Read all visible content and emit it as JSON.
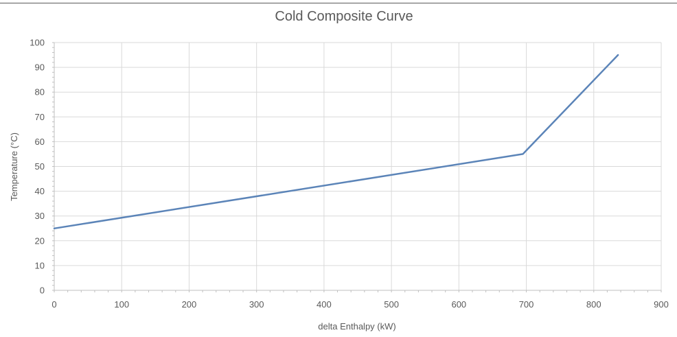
{
  "chart_data": {
    "type": "line",
    "title": "Cold Composite Curve",
    "xlabel": "delta Enthalpy  (kW)",
    "ylabel": "Temperature  (°C)",
    "xlim": [
      0,
      900
    ],
    "ylim": [
      0,
      100
    ],
    "x_ticks": [
      0,
      100,
      200,
      300,
      400,
      500,
      600,
      700,
      800,
      900
    ],
    "y_ticks": [
      0,
      10,
      20,
      30,
      40,
      50,
      60,
      70,
      80,
      90,
      100
    ],
    "grid": true,
    "series": [
      {
        "color": "#5b84b8",
        "points": [
          [
            0,
            25
          ],
          [
            695,
            55
          ],
          [
            836,
            95
          ]
        ]
      }
    ]
  },
  "colors": {
    "grid": "#d9d9d9",
    "axis": "#bfbfbf",
    "text": "#595959"
  }
}
